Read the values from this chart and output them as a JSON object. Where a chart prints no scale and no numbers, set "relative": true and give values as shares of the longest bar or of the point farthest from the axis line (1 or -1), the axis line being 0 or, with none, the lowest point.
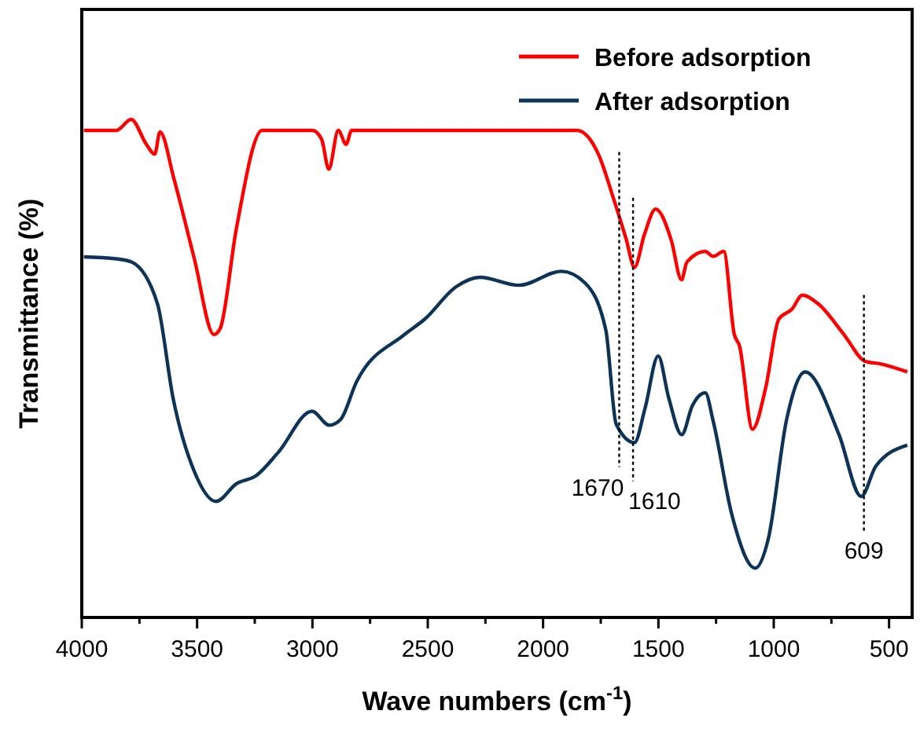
{
  "chart_data": {
    "type": "line",
    "relative": true,
    "xlabel": "Wave numbers (cm$^{-1}$)",
    "ylabel": "Transmittance (%)",
    "xlim": [
      4000,
      400
    ],
    "xticks": [
      4000,
      {
        "value": 3750,
        "label": null
      },
      3500,
      {
        "value": 3250,
        "label": null
      },
      3000,
      {
        "value": 2750,
        "label": null
      },
      2500,
      {
        "value": 2250,
        "label": null
      },
      2000,
      {
        "value": 1750,
        "label": null
      },
      1500,
      {
        "value": 1250,
        "label": null
      },
      1000,
      {
        "value": 750,
        "label": null
      },
      500
    ],
    "tick_labels": "x",
    "legend": "top right",
    "grid": false,
    "series": [
      {
        "name": "Before adsorption",
        "color": "#ff0000",
        "x": [
          3991,
          3850,
          3786,
          3720,
          3684,
          3661,
          3600,
          3512,
          3427,
          3400,
          3330,
          3218,
          3000,
          2960,
          2929,
          2888,
          2854,
          2830,
          2500,
          2200,
          1853,
          1760,
          1694,
          1640,
          1604,
          1560,
          1512,
          1444,
          1400,
          1376,
          1297,
          1263,
          1217,
          1171,
          1149,
          1092,
          1035,
          978,
          921,
          876,
          808,
          694,
          603,
          535,
          421
        ],
        "values": [
          0.978,
          0.978,
          1.0,
          0.95,
          0.93,
          0.975,
          0.88,
          0.72,
          0.568,
          0.58,
          0.78,
          0.978,
          0.978,
          0.96,
          0.9,
          0.978,
          0.95,
          0.978,
          0.978,
          0.978,
          0.978,
          0.93,
          0.84,
          0.76,
          0.703,
          0.77,
          0.82,
          0.757,
          0.678,
          0.714,
          0.735,
          0.725,
          0.735,
          0.568,
          0.546,
          0.378,
          0.461,
          0.599,
          0.619,
          0.647,
          0.63,
          0.567,
          0.514,
          0.509,
          0.493
        ]
      },
      {
        "name": "After adsorption",
        "color": "#0d3457",
        "x": [
          3991,
          3850,
          3786,
          3672,
          3604,
          3512,
          3418,
          3331,
          3243,
          3149,
          3002,
          2927,
          2877,
          2809,
          2604,
          2513,
          2377,
          2274,
          2104,
          1921,
          1819,
          1728,
          1683,
          1604,
          1558,
          1501,
          1456,
          1399,
          1353,
          1297,
          1262,
          1183,
          1080,
          1024,
          944,
          864,
          717,
          621,
          557,
          421
        ],
        "values": [
          0.724,
          0.72,
          0.714,
          0.63,
          0.44,
          0.293,
          0.233,
          0.268,
          0.285,
          0.331,
          0.414,
          0.386,
          0.398,
          0.473,
          0.567,
          0.599,
          0.664,
          0.683,
          0.667,
          0.695,
          0.672,
          0.577,
          0.388,
          0.351,
          0.42,
          0.525,
          0.442,
          0.367,
          0.425,
          0.451,
          0.393,
          0.209,
          0.099,
          0.157,
          0.398,
          0.493,
          0.367,
          0.243,
          0.304,
          0.346
        ]
      }
    ],
    "ref_lines": [
      {
        "axis": "x",
        "value": 1670,
        "label": "1670",
        "line_style": "dotted",
        "color": "#000000"
      },
      {
        "axis": "x",
        "value": 1610,
        "label": "1610",
        "line_style": "dotted",
        "color": "#000000"
      },
      {
        "axis": "x",
        "value": 609,
        "label": "609",
        "line_style": "dotted",
        "color": "#000000"
      }
    ]
  }
}
